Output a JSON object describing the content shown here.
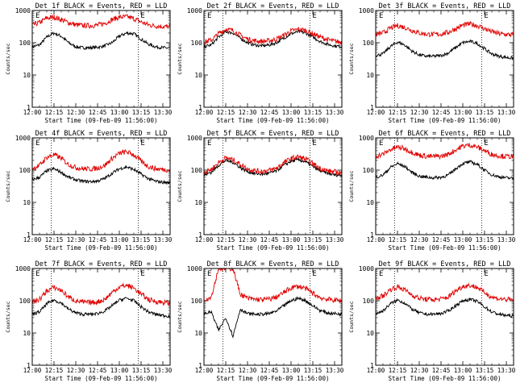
{
  "figure": {
    "xlabel": "Start Time (09-Feb-09 11:56:00)",
    "ylabel": "Counts/sec",
    "x_ticks": [
      "12:00",
      "12:15",
      "12:30",
      "12:45",
      "13:00",
      "13:15",
      "13:30"
    ],
    "y_ticks": [
      "1",
      "10",
      "100",
      "1000"
    ],
    "markers": [
      "E",
      "E"
    ]
  },
  "chart_data": [
    {
      "type": "line",
      "title": "Det 1f BLACK = Events, RED = LLD",
      "xlabel": "Start Time (09-Feb-09 11:56:00)",
      "ylabel": "Counts/sec",
      "yscale": "log",
      "ylim": [
        1,
        1000
      ],
      "xlim": [
        "12:00",
        "13:35"
      ],
      "x_ticks": [
        "12:00",
        "12:15",
        "12:30",
        "12:45",
        "13:00",
        "13:15",
        "13:30"
      ],
      "y_ticks": [
        "1",
        "10",
        "100",
        "1000"
      ],
      "markers": [
        "E",
        "E"
      ],
      "vlines": [
        "12:13",
        "13:13"
      ],
      "x_minutes": [
        0,
        5,
        10,
        15,
        20,
        25,
        30,
        35,
        40,
        45,
        50,
        55,
        60,
        65,
        70,
        75,
        80,
        85,
        90,
        95
      ],
      "series": [
        {
          "name": "Events",
          "color": "#000000",
          "values": [
            75,
            85,
            150,
            200,
            160,
            100,
            75,
            70,
            70,
            72,
            80,
            100,
            160,
            200,
            190,
            130,
            90,
            75,
            70,
            68
          ]
        },
        {
          "name": "LLD",
          "color": "#e00000",
          "values": [
            350,
            420,
            580,
            620,
            520,
            420,
            360,
            340,
            340,
            350,
            400,
            520,
            620,
            640,
            560,
            440,
            360,
            330,
            320,
            310
          ]
        }
      ]
    },
    {
      "type": "line",
      "title": "Det 2f BLACK = Events, RED = LLD",
      "xlabel": "Start Time (09-Feb-09 11:56:00)",
      "ylabel": "Counts/sec",
      "yscale": "log",
      "ylim": [
        1,
        1000
      ],
      "xlim": [
        "12:00",
        "13:35"
      ],
      "x_ticks": [
        "12:00",
        "12:15",
        "12:30",
        "12:45",
        "13:00",
        "13:15",
        "13:30"
      ],
      "y_ticks": [
        "1",
        "10",
        "100",
        "1000"
      ],
      "markers": [
        "E",
        "E"
      ],
      "vlines": [
        "12:13",
        "13:13"
      ],
      "x_minutes": [
        0,
        5,
        10,
        15,
        20,
        25,
        30,
        35,
        40,
        45,
        50,
        55,
        60,
        65,
        70,
        75,
        80,
        85,
        90,
        95
      ],
      "series": [
        {
          "name": "Events",
          "color": "#000000",
          "values": [
            75,
            85,
            150,
            220,
            200,
            140,
            100,
            85,
            80,
            85,
            100,
            140,
            190,
            220,
            200,
            150,
            110,
            90,
            80,
            75
          ]
        },
        {
          "name": "LLD",
          "color": "#e00000",
          "values": [
            105,
            120,
            190,
            260,
            240,
            170,
            130,
            115,
            110,
            115,
            130,
            170,
            230,
            260,
            240,
            190,
            150,
            125,
            110,
            105
          ]
        }
      ]
    },
    {
      "type": "line",
      "title": "Det 3f BLACK = Events, RED = LLD",
      "xlabel": "Start Time (09-Feb-09 11:56:00)",
      "ylabel": "Counts/sec",
      "yscale": "log",
      "ylim": [
        1,
        1000
      ],
      "xlim": [
        "12:00",
        "13:35"
      ],
      "x_ticks": [
        "12:00",
        "12:15",
        "12:30",
        "12:45",
        "13:00",
        "13:15",
        "13:30"
      ],
      "y_ticks": [
        "1",
        "10",
        "100",
        "1000"
      ],
      "markers": [
        "E",
        "E"
      ],
      "vlines": [
        "12:13",
        "13:13"
      ],
      "x_minutes": [
        0,
        5,
        10,
        15,
        20,
        25,
        30,
        35,
        40,
        45,
        50,
        55,
        60,
        65,
        70,
        75,
        80,
        85,
        90,
        95
      ],
      "series": [
        {
          "name": "Events",
          "color": "#000000",
          "values": [
            40,
            45,
            75,
            105,
            85,
            55,
            42,
            38,
            38,
            40,
            48,
            70,
            100,
            110,
            95,
            65,
            45,
            38,
            35,
            33
          ]
        },
        {
          "name": "LLD",
          "color": "#e00000",
          "values": [
            180,
            200,
            280,
            340,
            300,
            240,
            200,
            185,
            180,
            185,
            210,
            270,
            350,
            380,
            340,
            270,
            220,
            190,
            180,
            175
          ]
        }
      ]
    },
    {
      "type": "line",
      "title": "Det 4f BLACK = Events, RED = LLD",
      "xlabel": "Start Time (09-Feb-09 11:56:00)",
      "ylabel": "Counts/sec",
      "yscale": "log",
      "ylim": [
        1,
        1000
      ],
      "xlim": [
        "12:00",
        "13:35"
      ],
      "x_ticks": [
        "12:00",
        "12:15",
        "12:30",
        "12:45",
        "13:00",
        "13:15",
        "13:30"
      ],
      "y_ticks": [
        "1",
        "10",
        "100",
        "1000"
      ],
      "markers": [
        "E",
        "E"
      ],
      "vlines": [
        "12:13",
        "13:13"
      ],
      "x_minutes": [
        0,
        5,
        10,
        15,
        20,
        25,
        30,
        35,
        40,
        45,
        50,
        55,
        60,
        65,
        70,
        75,
        80,
        85,
        90,
        95
      ],
      "series": [
        {
          "name": "Events",
          "color": "#000000",
          "values": [
            50,
            60,
            95,
            110,
            85,
            60,
            50,
            45,
            44,
            46,
            55,
            80,
            110,
            125,
            105,
            75,
            55,
            45,
            42,
            40
          ]
        },
        {
          "name": "LLD",
          "color": "#e00000",
          "values": [
            110,
            140,
            250,
            300,
            230,
            150,
            120,
            110,
            108,
            115,
            140,
            230,
            330,
            370,
            300,
            190,
            130,
            110,
            105,
            100
          ]
        }
      ]
    },
    {
      "type": "line",
      "title": "Det 5f BLACK = Events, RED = LLD",
      "xlabel": "Start Time (09-Feb-09 11:56:00)",
      "ylabel": "Counts/sec",
      "yscale": "log",
      "ylim": [
        1,
        1000
      ],
      "xlim": [
        "12:00",
        "13:35"
      ],
      "x_ticks": [
        "12:00",
        "12:15",
        "12:30",
        "12:45",
        "13:00",
        "13:15",
        "13:30"
      ],
      "y_ticks": [
        "1",
        "10",
        "100",
        "1000"
      ],
      "markers": [
        "E",
        "E"
      ],
      "vlines": [
        "12:13",
        "13:13"
      ],
      "x_minutes": [
        0,
        5,
        10,
        15,
        20,
        25,
        30,
        35,
        40,
        45,
        50,
        55,
        60,
        65,
        70,
        75,
        80,
        85,
        90,
        95
      ],
      "series": [
        {
          "name": "Events",
          "color": "#000000",
          "values": [
            70,
            85,
            140,
            200,
            175,
            120,
            90,
            78,
            75,
            80,
            95,
            140,
            190,
            210,
            180,
            130,
            95,
            80,
            72,
            68
          ]
        },
        {
          "name": "LLD",
          "color": "#e00000",
          "values": [
            85,
            105,
            170,
            240,
            210,
            150,
            110,
            95,
            92,
            98,
            115,
            170,
            230,
            260,
            220,
            160,
            115,
            95,
            88,
            82
          ]
        }
      ]
    },
    {
      "type": "line",
      "title": "Det 6f BLACK = Events, RED = LLD",
      "xlabel": "Start Time (09-Feb-09 11:56:00)",
      "ylabel": "Counts/sec",
      "yscale": "log",
      "ylim": [
        1,
        1000
      ],
      "xlim": [
        "12:00",
        "13:35"
      ],
      "x_ticks": [
        "12:00",
        "12:15",
        "12:30",
        "12:45",
        "13:00",
        "13:15",
        "13:30"
      ],
      "y_ticks": [
        "1",
        "10",
        "100",
        "1000"
      ],
      "markers": [
        "E",
        "E"
      ],
      "vlines": [
        "12:13",
        "13:13"
      ],
      "x_minutes": [
        0,
        5,
        10,
        15,
        20,
        25,
        30,
        35,
        40,
        45,
        50,
        55,
        60,
        65,
        70,
        75,
        80,
        85,
        90,
        95
      ],
      "series": [
        {
          "name": "Events",
          "color": "#000000",
          "values": [
            60,
            70,
            120,
            160,
            130,
            85,
            65,
            60,
            58,
            60,
            70,
            110,
            160,
            180,
            150,
            100,
            72,
            62,
            58,
            55
          ]
        },
        {
          "name": "LLD",
          "color": "#e00000",
          "values": [
            270,
            310,
            430,
            520,
            460,
            360,
            290,
            270,
            265,
            270,
            310,
            420,
            560,
            600,
            520,
            400,
            310,
            280,
            265,
            260
          ]
        }
      ]
    },
    {
      "type": "line",
      "title": "Det 7f BLACK = Events, RED = LLD",
      "xlabel": "Start Time (09-Feb-09 11:56:00)",
      "ylabel": "Counts/sec",
      "yscale": "log",
      "ylim": [
        1,
        1000
      ],
      "xlim": [
        "12:00",
        "13:35"
      ],
      "x_ticks": [
        "12:00",
        "12:15",
        "12:30",
        "12:45",
        "13:00",
        "13:15",
        "13:30"
      ],
      "y_ticks": [
        "1",
        "10",
        "100",
        "1000"
      ],
      "markers": [
        "E",
        "E"
      ],
      "vlines": [
        "12:13",
        "13:13"
      ],
      "x_minutes": [
        0,
        5,
        10,
        15,
        20,
        25,
        30,
        35,
        40,
        45,
        50,
        55,
        60,
        65,
        70,
        75,
        80,
        85,
        90,
        95
      ],
      "series": [
        {
          "name": "Events",
          "color": "#000000",
          "values": [
            38,
            45,
            80,
            105,
            85,
            55,
            42,
            38,
            38,
            40,
            48,
            70,
            105,
            120,
            100,
            65,
            45,
            38,
            35,
            33
          ]
        },
        {
          "name": "LLD",
          "color": "#e00000",
          "values": [
            90,
            110,
            200,
            260,
            210,
            130,
            100,
            90,
            88,
            92,
            110,
            180,
            270,
            300,
            250,
            160,
            110,
            95,
            90,
            85
          ]
        }
      ]
    },
    {
      "type": "line",
      "title": "Det 8f BLACK = Events, RED = LLD",
      "xlabel": "Start Time (09-Feb-09 11:56:00)",
      "ylabel": "Counts/sec",
      "yscale": "log",
      "ylim": [
        1,
        1000
      ],
      "xlim": [
        "12:00",
        "13:35"
      ],
      "x_ticks": [
        "12:00",
        "12:15",
        "12:30",
        "12:45",
        "13:00",
        "13:15",
        "13:30"
      ],
      "y_ticks": [
        "1",
        "10",
        "100",
        "1000"
      ],
      "markers": [
        "E",
        "E"
      ],
      "vlines": [
        "12:13",
        "13:13"
      ],
      "x_minutes": [
        0,
        5,
        10,
        15,
        20,
        25,
        30,
        35,
        40,
        45,
        50,
        55,
        60,
        65,
        70,
        75,
        80,
        85,
        90,
        95
      ],
      "series": [
        {
          "name": "Events",
          "color": "#000000",
          "values": [
            40,
            45,
            12,
            30,
            8,
            55,
            40,
            38,
            38,
            40,
            48,
            70,
            100,
            120,
            100,
            70,
            50,
            42,
            40,
            38
          ]
        },
        {
          "name": "LLD",
          "color": "#e00000",
          "values": [
            110,
            130,
            1000,
            1000,
            1000,
            160,
            120,
            110,
            108,
            112,
            130,
            180,
            250,
            280,
            240,
            170,
            125,
            110,
            105,
            100
          ]
        }
      ]
    },
    {
      "type": "line",
      "title": "Det 9f BLACK = Events, RED = LLD",
      "xlabel": "Start Time (09-Feb-09 11:56:00)",
      "ylabel": "Counts/sec",
      "yscale": "log",
      "ylim": [
        1,
        1000
      ],
      "xlim": [
        "12:00",
        "13:35"
      ],
      "x_ticks": [
        "12:00",
        "12:15",
        "12:30",
        "12:45",
        "13:00",
        "13:15",
        "13:30"
      ],
      "y_ticks": [
        "1",
        "10",
        "100",
        "1000"
      ],
      "markers": [
        "E",
        "E"
      ],
      "vlines": [
        "12:13",
        "13:13"
      ],
      "x_minutes": [
        0,
        5,
        10,
        15,
        20,
        25,
        30,
        35,
        40,
        45,
        50,
        55,
        60,
        65,
        70,
        75,
        80,
        85,
        90,
        95
      ],
      "series": [
        {
          "name": "Events",
          "color": "#000000",
          "values": [
            40,
            48,
            80,
            105,
            85,
            55,
            42,
            38,
            38,
            40,
            48,
            70,
            100,
            110,
            95,
            65,
            45,
            38,
            35,
            33
          ]
        },
        {
          "name": "LLD",
          "color": "#e00000",
          "values": [
            120,
            140,
            220,
            270,
            220,
            150,
            120,
            110,
            108,
            112,
            130,
            200,
            280,
            300,
            260,
            180,
            130,
            115,
            110,
            105
          ]
        }
      ]
    }
  ]
}
